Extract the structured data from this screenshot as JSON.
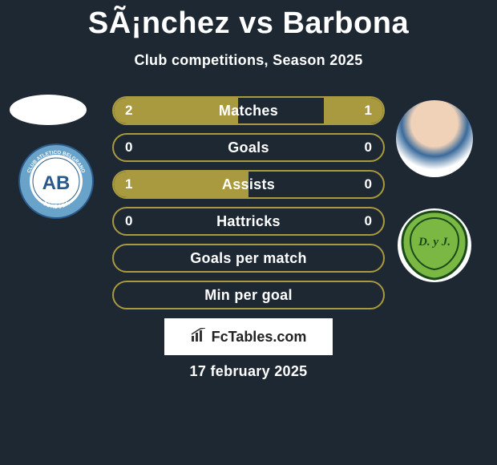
{
  "title": "SÃ¡nchez vs Barbona",
  "subtitle": "Club competitions, Season 2025",
  "stats": [
    {
      "label": "Matches",
      "left_value": "2",
      "right_value": "1",
      "left_fill_pct": 46,
      "right_fill_pct": 22
    },
    {
      "label": "Goals",
      "left_value": "0",
      "right_value": "0",
      "left_fill_pct": 0,
      "right_fill_pct": 0
    },
    {
      "label": "Assists",
      "left_value": "1",
      "right_value": "0",
      "left_fill_pct": 50,
      "right_fill_pct": 0
    },
    {
      "label": "Hattricks",
      "left_value": "0",
      "right_value": "0",
      "left_fill_pct": 0,
      "right_fill_pct": 0
    },
    {
      "label": "Goals per match",
      "left_value": "",
      "right_value": "",
      "left_fill_pct": 0,
      "right_fill_pct": 0
    },
    {
      "label": "Min per goal",
      "left_value": "",
      "right_value": "",
      "left_fill_pct": 0,
      "right_fill_pct": 0
    }
  ],
  "colors": {
    "background": "#1e2833",
    "accent": "#aa9a3f",
    "text": "#ffffff",
    "club_left_outer": "#6aa3c9",
    "club_left_inner": "#ffffff",
    "club_left_text": "#2a5a8a",
    "club_right_bg": "#7ab843",
    "club_right_stroke": "#1a4a1a"
  },
  "footer_brand": "FcTables.com",
  "date": "17 february 2025",
  "club_left_label": "CLUB ATLETICO BELGRANO",
  "club_left_abbr": "AB",
  "club_right_abbr": "D. y J."
}
